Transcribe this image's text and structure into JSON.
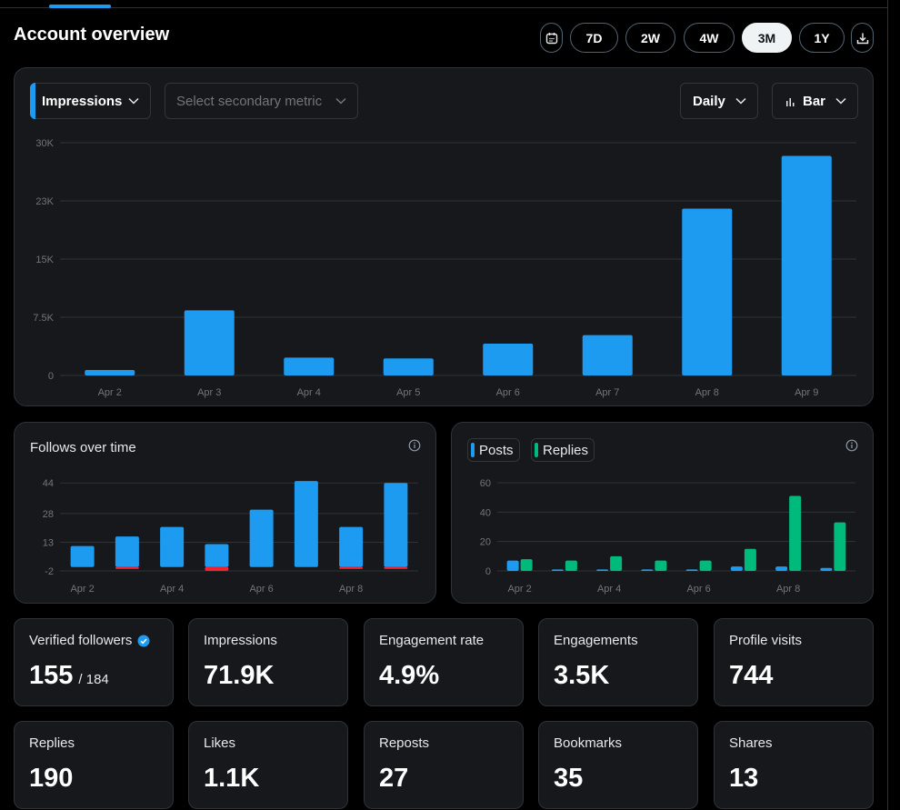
{
  "header": {
    "title": "Account overview",
    "ranges": [
      "7D",
      "2W",
      "4W",
      "3M",
      "1Y"
    ],
    "active_range": "3M",
    "calendar_icon": "calendar-icon",
    "download_icon": "download-icon"
  },
  "main_chart_controls": {
    "primary_metric": "Impressions",
    "secondary_metric_placeholder": "Select secondary metric",
    "interval": "Daily",
    "chart_type": "Bar",
    "accent": "#1d9bf0"
  },
  "follows_card": {
    "title": "Follows over time",
    "info_icon": "info-icon"
  },
  "posts_card": {
    "legend": [
      {
        "label": "Posts",
        "color": "#1d9bf0"
      },
      {
        "label": "Replies",
        "color": "#00ba7c"
      }
    ],
    "info_icon": "info-icon"
  },
  "stats": [
    {
      "label": "Verified followers",
      "value": "155",
      "sub": "/ 184",
      "verified": true
    },
    {
      "label": "Impressions",
      "value": "71.9K"
    },
    {
      "label": "Engagement rate",
      "value": "4.9%"
    },
    {
      "label": "Engagements",
      "value": "3.5K"
    },
    {
      "label": "Profile visits",
      "value": "744"
    },
    {
      "label": "Replies",
      "value": "190"
    },
    {
      "label": "Likes",
      "value": "1.1K"
    },
    {
      "label": "Reposts",
      "value": "27"
    },
    {
      "label": "Bookmarks",
      "value": "35"
    },
    {
      "label": "Shares",
      "value": "13"
    }
  ],
  "chart_data": [
    {
      "type": "bar",
      "categories": [
        "Apr 2",
        "Apr 3",
        "Apr 4",
        "Apr 5",
        "Apr 6",
        "Apr 7",
        "Apr 8",
        "Apr 9"
      ],
      "series": [
        {
          "name": "Impressions",
          "values": [
            700,
            8400,
            2300,
            2200,
            4100,
            5200,
            21500,
            28300
          ],
          "color": "#1d9bf0"
        }
      ],
      "yticks": [
        "0",
        "7.5K",
        "15K",
        "23K",
        "30K"
      ],
      "ytick_values": [
        0,
        7500,
        15000,
        22500,
        30000
      ],
      "ylim": [
        0,
        30000
      ]
    },
    {
      "type": "bar",
      "title": "Follows over time",
      "x": [
        "Apr 2",
        "Apr 3",
        "Apr 4",
        "Apr 5",
        "Apr 6",
        "Apr 7",
        "Apr 8",
        "Apr 9"
      ],
      "xlabels": [
        "Apr 2",
        "Apr 4",
        "Apr 6",
        "Apr 8"
      ],
      "series": [
        {
          "values": [
            11,
            16,
            21,
            12,
            30,
            45,
            21,
            44
          ],
          "color": "#1d9bf0"
        },
        {
          "values": [
            0,
            -1,
            0,
            -2,
            0,
            0,
            -1,
            -1
          ],
          "color": "#f4212e"
        }
      ],
      "yticks": [
        "-2",
        "13",
        "28",
        "44"
      ],
      "ytick_values": [
        -2,
        13,
        28,
        44
      ],
      "ylim": [
        -2,
        46
      ]
    },
    {
      "type": "bar",
      "x": [
        "Apr 2",
        "Apr 3",
        "Apr 4",
        "Apr 5",
        "Apr 6",
        "Apr 7",
        "Apr 8",
        "Apr 9"
      ],
      "xlabels": [
        "Apr 2",
        "Apr 4",
        "Apr 6",
        "Apr 8"
      ],
      "series": [
        {
          "name": "Posts",
          "values": [
            7,
            1,
            1,
            1,
            1,
            3,
            3,
            2
          ],
          "color": "#1d9bf0"
        },
        {
          "name": "Replies",
          "values": [
            8,
            7,
            10,
            7,
            7,
            15,
            51,
            33
          ],
          "color": "#00ba7c"
        }
      ],
      "yticks": [
        "0",
        "20",
        "40",
        "60"
      ],
      "ytick_values": [
        0,
        20,
        40,
        60
      ],
      "ylim": [
        0,
        60
      ]
    }
  ]
}
